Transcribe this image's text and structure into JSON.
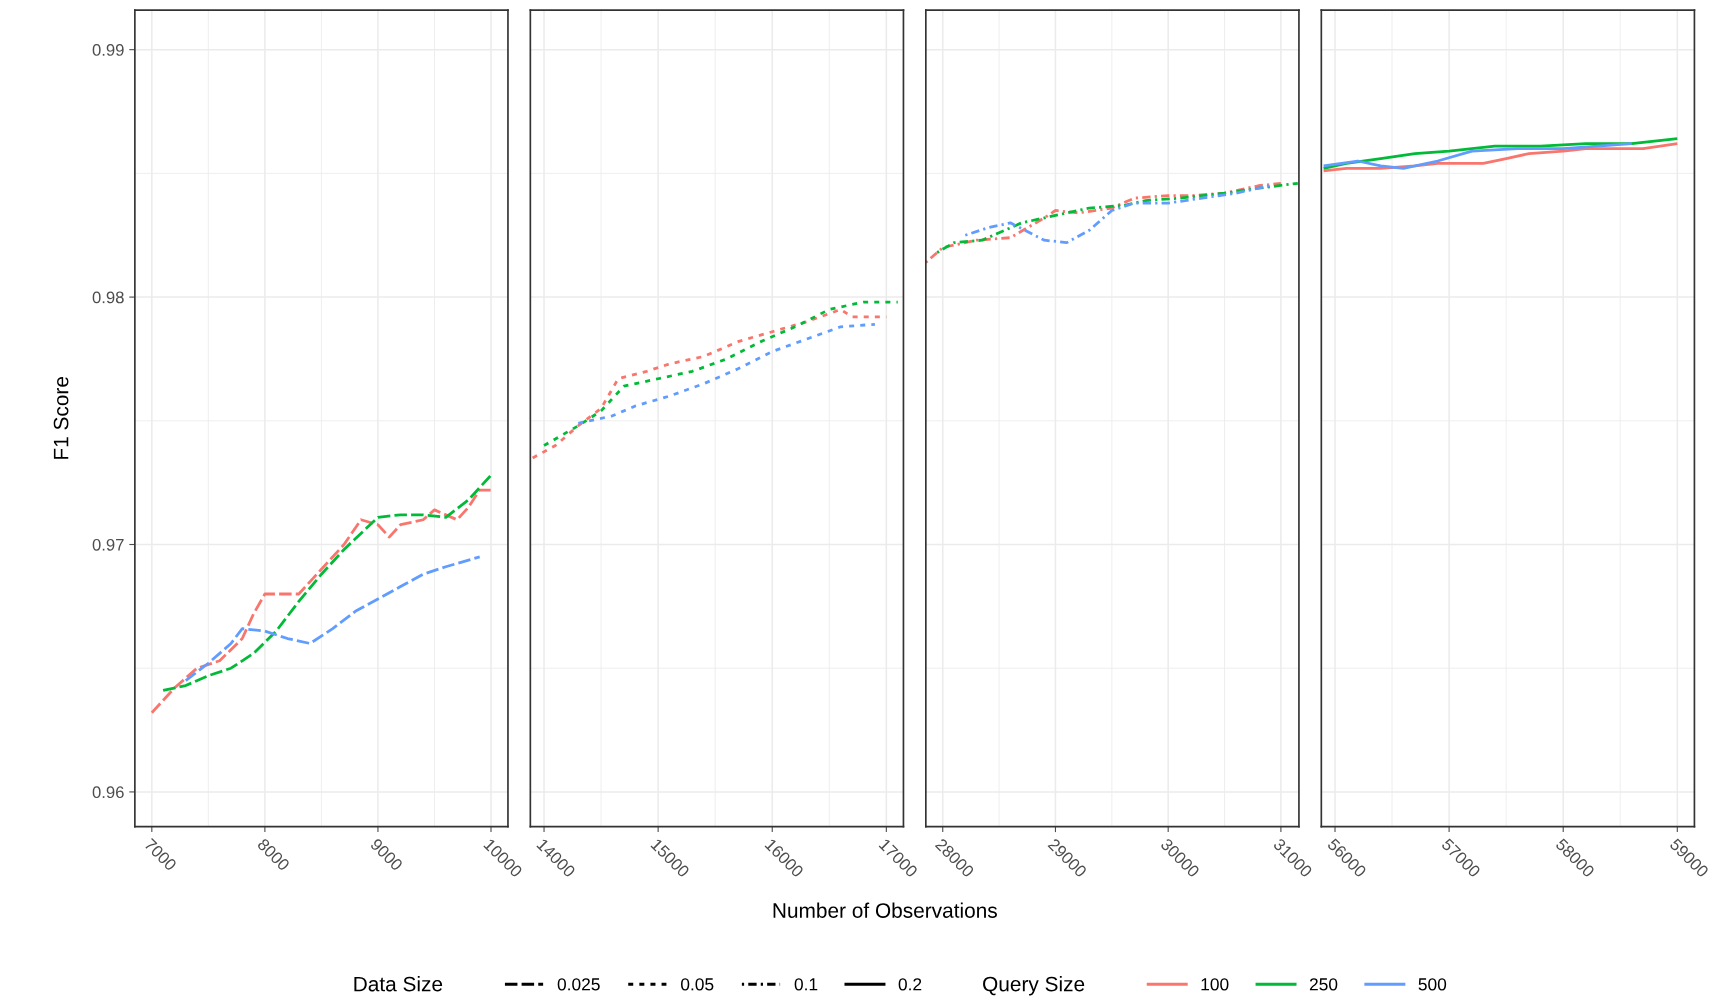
{
  "chart_data": [
    {
      "type": "line",
      "ylabel": "F1 Score",
      "legend_title": "Data Size",
      "legend": "bottom",
      "line_style": "longdash",
      "annotations": [
        "0.025"
      ],
      "grid": true,
      "xlim": [
        6850,
        10150
      ],
      "xticks": [
        7000,
        8000,
        9000,
        10000
      ],
      "ylim": [
        0.9586,
        0.9916
      ],
      "yticks": [
        0.96,
        0.97,
        0.98,
        0.99
      ],
      "series": [
        {
          "color": "#f8766d",
          "x": [
            7000,
            7200,
            7400,
            7600,
            7800,
            7900,
            8000,
            8300,
            8500,
            8700,
            8850,
            9000,
            9100,
            9200,
            9400,
            9500,
            9700,
            9800,
            9900,
            10000
          ],
          "values": [
            0.9632,
            0.9642,
            0.965,
            0.9653,
            0.9662,
            0.9672,
            0.968,
            0.968,
            0.969,
            0.97,
            0.971,
            0.9708,
            0.9703,
            0.9708,
            0.971,
            0.9714,
            0.971,
            0.9715,
            0.9722,
            0.9722
          ]
        },
        {
          "color": "#00ba38",
          "x": [
            7100,
            7300,
            7500,
            7700,
            7900,
            8100,
            8300,
            8500,
            8700,
            9000,
            9200,
            9400,
            9600,
            9800,
            10000
          ],
          "values": [
            0.9641,
            0.9643,
            0.9647,
            0.965,
            0.9656,
            0.9665,
            0.9677,
            0.9688,
            0.9698,
            0.9711,
            0.9712,
            0.9712,
            0.9711,
            0.9718,
            0.9728
          ]
        },
        {
          "color": "#619cff",
          "x": [
            7300,
            7500,
            7700,
            7800,
            8000,
            8200,
            8400,
            8600,
            8800,
            9000,
            9200,
            9400,
            9600,
            9900
          ],
          "values": [
            0.9645,
            0.9652,
            0.966,
            0.9666,
            0.9665,
            0.9662,
            0.966,
            0.9666,
            0.9673,
            0.9678,
            0.9683,
            0.9688,
            0.9691,
            0.9695
          ]
        }
      ]
    },
    {
      "type": "line",
      "xlabel": "Number of Observations",
      "line_style": "dashed",
      "annotations": [
        "0.05"
      ],
      "grid": true,
      "tick_labels": "x",
      "xlim": [
        13880,
        17150
      ],
      "xticks": [
        14000,
        15000,
        16000,
        17000
      ],
      "ylim": [
        0.9586,
        0.9916
      ],
      "yticks": [
        0.96,
        0.97,
        0.98,
        0.99
      ],
      "series": [
        {
          "color": "#f8766d",
          "x": [
            13900,
            14100,
            14300,
            14500,
            14650,
            14900,
            15100,
            15400,
            15700,
            16000,
            16300,
            16600,
            16700,
            17000
          ],
          "values": [
            0.9735,
            0.974,
            0.9748,
            0.9755,
            0.9767,
            0.977,
            0.9773,
            0.9776,
            0.9782,
            0.9786,
            0.979,
            0.9795,
            0.9792,
            0.9792
          ]
        },
        {
          "color": "#00ba38",
          "x": [
            14000,
            14300,
            14500,
            14700,
            15000,
            15300,
            15600,
            15900,
            16200,
            16500,
            16800,
            17100
          ],
          "values": [
            0.974,
            0.9748,
            0.9754,
            0.9764,
            0.9767,
            0.977,
            0.9775,
            0.9782,
            0.9788,
            0.9795,
            0.9798,
            0.9798
          ]
        },
        {
          "color": "#619cff",
          "x": [
            14300,
            14600,
            14800,
            15100,
            15400,
            15700,
            16000,
            16300,
            16600,
            16900
          ],
          "values": [
            0.9749,
            0.9752,
            0.9756,
            0.976,
            0.9765,
            0.9771,
            0.9778,
            0.9783,
            0.9788,
            0.9789
          ]
        }
      ]
    },
    {
      "type": "line",
      "line_style": "dashdot",
      "annotations": [
        "0.1"
      ],
      "grid": true,
      "tick_labels": "x",
      "xlim": [
        27850,
        31160
      ],
      "xticks": [
        28000,
        29000,
        30000,
        31000
      ],
      "ylim": [
        0.9586,
        0.9916
      ],
      "yticks": [
        0.96,
        0.97,
        0.98,
        0.99
      ],
      "series": [
        {
          "color": "#f8766d",
          "x": [
            27850,
            28000,
            28300,
            28600,
            28900,
            29000,
            29200,
            29500,
            29700,
            30000,
            30200,
            30500,
            30800,
            31000
          ],
          "values": [
            0.9814,
            0.982,
            0.9823,
            0.9824,
            0.9832,
            0.9835,
            0.9834,
            0.9836,
            0.984,
            0.9841,
            0.9841,
            0.9842,
            0.9845,
            0.9846
          ]
        },
        {
          "color": "#00ba38",
          "x": [
            27950,
            28100,
            28350,
            28500,
            28700,
            29000,
            29300,
            29600,
            29800,
            30100,
            30500,
            30800,
            31150
          ],
          "values": [
            0.9818,
            0.9822,
            0.9823,
            0.9826,
            0.983,
            0.9833,
            0.9836,
            0.9837,
            0.9839,
            0.984,
            0.9842,
            0.9844,
            0.9846
          ]
        },
        {
          "color": "#619cff",
          "x": [
            28200,
            28400,
            28600,
            28900,
            29100,
            29300,
            29500,
            29700,
            30000,
            30300,
            30600,
            30900
          ],
          "values": [
            0.9825,
            0.9828,
            0.983,
            0.9823,
            0.9822,
            0.9827,
            0.9835,
            0.9838,
            0.9838,
            0.984,
            0.9842,
            0.9845
          ]
        }
      ]
    },
    {
      "type": "line",
      "line_style": "solid",
      "annotations": [
        "0.2"
      ],
      "legend_title": "Query Size",
      "legend": "bottom",
      "grid": true,
      "tick_labels": "x",
      "xlim": [
        55880,
        59150
      ],
      "xticks": [
        56000,
        57000,
        58000,
        59000
      ],
      "ylim": [
        0.9586,
        0.9916
      ],
      "yticks": [
        0.96,
        0.97,
        0.98,
        0.99
      ],
      "series": [
        {
          "name": "100",
          "color": "#f8766d",
          "x": [
            55900,
            56100,
            56400,
            56700,
            56900,
            57300,
            57500,
            57700,
            58000,
            58200,
            58400,
            58700,
            59000
          ],
          "values": [
            0.9851,
            0.9852,
            0.9852,
            0.9853,
            0.9854,
            0.9854,
            0.9856,
            0.9858,
            0.9859,
            0.986,
            0.986,
            0.986,
            0.9862
          ]
        },
        {
          "name": "250",
          "color": "#00ba38",
          "x": [
            55900,
            56100,
            56400,
            56700,
            57000,
            57400,
            57800,
            58200,
            58600,
            59000
          ],
          "values": [
            0.9852,
            0.9854,
            0.9856,
            0.9858,
            0.9859,
            0.9861,
            0.9861,
            0.9862,
            0.9862,
            0.9864
          ]
        },
        {
          "name": "500",
          "color": "#619cff",
          "x": [
            55900,
            56200,
            56400,
            56600,
            56900,
            57200,
            57600,
            58000,
            58300,
            58600
          ],
          "values": [
            0.9853,
            0.9855,
            0.9853,
            0.9852,
            0.9855,
            0.9859,
            0.986,
            0.986,
            0.9861,
            0.9862
          ]
        }
      ]
    }
  ]
}
